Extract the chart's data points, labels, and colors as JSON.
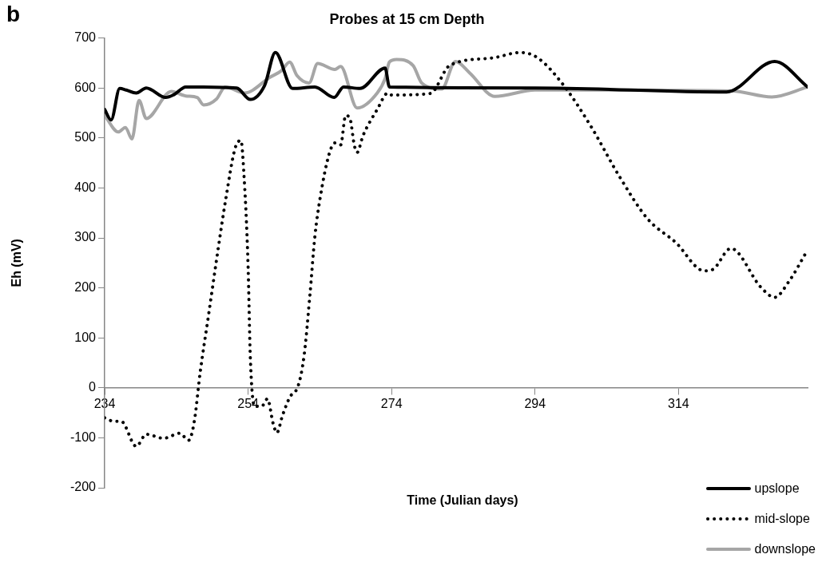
{
  "chart_data": {
    "type": "line",
    "title": "Probes at 15 cm Depth",
    "xlabel": "Time (Julian days)",
    "ylabel": "Eh (mV)",
    "annotations": [
      "b"
    ],
    "xlim": [
      234,
      332
    ],
    "xticks": [
      234,
      254,
      274,
      294,
      314
    ],
    "ylim": [
      -200,
      700
    ],
    "yticks": [
      -200,
      -100,
      0,
      100,
      200,
      300,
      400,
      500,
      600,
      700
    ],
    "grid": false,
    "legend": "bottom right",
    "marker": "none",
    "series": [
      {
        "name": "upslope",
        "color": "#000000",
        "line_style": "solid",
        "x": [
          234,
          234.9,
          236.1,
          237,
          238.4,
          239.8,
          242.5,
          243.7,
          245.3,
          252.4,
          254.3,
          256.3,
          257.8,
          260.2,
          263.3,
          266,
          267.3,
          269.6,
          273.1,
          273.7,
          294,
          320.7,
          327.4,
          332
        ],
        "values": [
          557,
          536,
          599,
          596,
          590,
          600,
          581,
          587,
          602,
          600,
          577,
          605,
          671,
          599,
          602,
          581,
          602,
          599,
          640,
          602,
          600,
          592,
          653,
          602
        ]
      },
      {
        "name": "mid-slope",
        "color": "#000000",
        "line_style": "dotted",
        "x": [
          234,
          235.3,
          236.3,
          238.4,
          239.8,
          242.2,
          244.5,
          245.7,
          246.5,
          247.3,
          248.5,
          249.7,
          250.9,
          252.2,
          253,
          253.4,
          254,
          254.3,
          254.9,
          255.9,
          256.7,
          257.5,
          258,
          258.8,
          259.8,
          261,
          261.8,
          262.6,
          263.3,
          264.1,
          265.3,
          266.1,
          266.9,
          267.6,
          268.2,
          268.8,
          269.2,
          270,
          272,
          273.5,
          274,
          279.4,
          282.1,
          288,
          292,
          294.4,
          297.9,
          301.8,
          305.8,
          309.7,
          313.6,
          317.6,
          318.8,
          321.3,
          325.5,
          327.4,
          329.4,
          332
        ],
        "values": [
          -60,
          -67,
          -67,
          -117,
          -93,
          -101,
          -91,
          -105,
          -67,
          29,
          147,
          266,
          379,
          480,
          495,
          432,
          242,
          64,
          -37,
          -37,
          -22,
          -72,
          -90,
          -55,
          -19,
          5,
          64,
          183,
          302,
          385,
          468,
          490,
          486,
          545,
          539,
          486,
          471,
          504,
          557,
          590,
          586,
          589,
          645,
          660,
          671,
          660,
          607,
          523,
          422,
          338,
          291,
          234,
          237,
          279,
          201,
          181,
          213,
          276
        ]
      },
      {
        "name": "downslope",
        "color": "#a6a6a6",
        "line_style": "solid",
        "x": [
          234,
          235.9,
          236.9,
          237.8,
          238.8,
          239.8,
          243.3,
          245.3,
          246.9,
          247.8,
          249.6,
          250.8,
          253.5,
          257.1,
          258.6,
          259.8,
          260.8,
          262.5,
          263.7,
          266.1,
          266.9,
          269.2,
          272,
          273.1,
          273.7,
          274.7,
          277,
          278.2,
          281,
          282.9,
          284.9,
          288.4,
          294,
          321.5,
          327,
          332
        ],
        "values": [
          545,
          512,
          521,
          498,
          575,
          539,
          593,
          584,
          581,
          566,
          578,
          602,
          590,
          622,
          634,
          652,
          625,
          610,
          649,
          637,
          643,
          560,
          590,
          619,
          652,
          657,
          645,
          610,
          598,
          653,
          630,
          583,
          596,
          594,
          582,
          602
        ]
      }
    ]
  }
}
